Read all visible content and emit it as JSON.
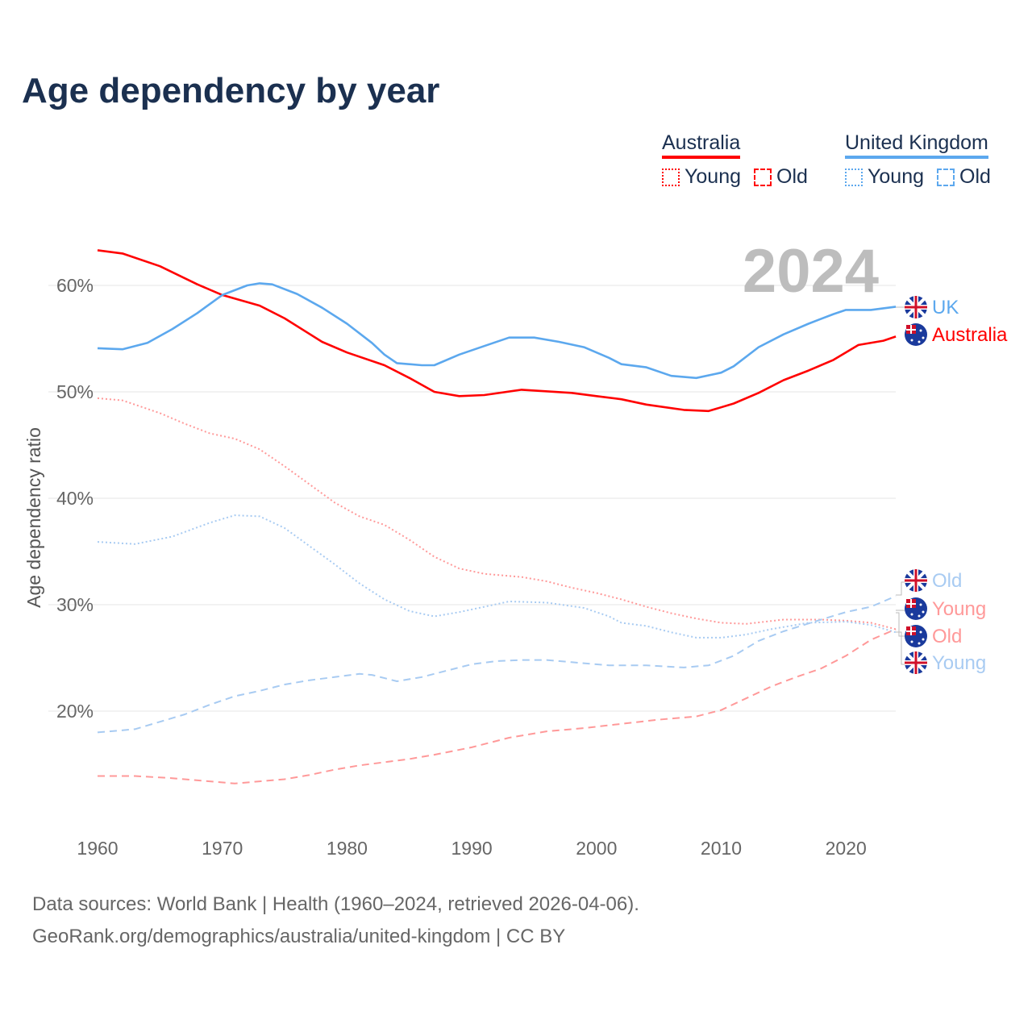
{
  "title": "Age dependency by year",
  "legend": {
    "groups": [
      {
        "name": "Australia",
        "color": "#ff0000",
        "items": [
          "Young",
          "Old"
        ]
      },
      {
        "name": "United Kingdom",
        "color": "#5ca8ee",
        "items": [
          "Young",
          "Old"
        ]
      }
    ]
  },
  "year_label": "2024",
  "footer": {
    "line1": "Data sources: World Bank | Health (1960–2024, retrieved 2026-04-06).",
    "line2": "GeoRank.org/demographics/australia/united-kingdom | CC BY"
  },
  "chart_data": {
    "type": "line",
    "title": "Age dependency by year",
    "xlabel": "",
    "ylabel": "Age dependency ratio",
    "xlim": [
      1960,
      2024
    ],
    "ylim": [
      10,
      65
    ],
    "xticks": [
      "1960",
      "1970",
      "1980",
      "1990",
      "2000",
      "2010",
      "2020"
    ],
    "yticks": [
      "20%",
      "30%",
      "40%",
      "50%",
      "60%"
    ],
    "grid": true,
    "legend_position": "top-right",
    "series": [
      {
        "name": "Australia",
        "label": "Australia",
        "country": "AU",
        "kind": "total",
        "color": "#ff0000",
        "dash": "solid",
        "x": [
          1960,
          1962,
          1965,
          1968,
          1970,
          1973,
          1975,
          1978,
          1980,
          1983,
          1985,
          1987,
          1989,
          1991,
          1994,
          1998,
          2000,
          2002,
          2004,
          2007,
          2009,
          2011,
          2013,
          2015,
          2017,
          2019,
          2021,
          2023,
          2024
        ],
        "y": [
          63.3,
          63.0,
          61.8,
          60.1,
          59.1,
          58.1,
          56.9,
          54.7,
          53.7,
          52.5,
          51.3,
          50.0,
          49.6,
          49.7,
          50.2,
          49.9,
          49.6,
          49.3,
          48.8,
          48.3,
          48.2,
          48.9,
          49.9,
          51.1,
          52.0,
          53.0,
          54.4,
          54.8,
          55.2
        ]
      },
      {
        "name": "United Kingdom",
        "label": "UK",
        "country": "UK",
        "kind": "total",
        "color": "#5ca8ee",
        "dash": "solid",
        "x": [
          1960,
          1962,
          1964,
          1966,
          1968,
          1970,
          1972,
          1973,
          1974,
          1976,
          1978,
          1980,
          1982,
          1983,
          1984,
          1986,
          1987,
          1989,
          1991,
          1993,
          1995,
          1997,
          1999,
          2001,
          2002,
          2004,
          2006,
          2008,
          2010,
          2011,
          2013,
          2015,
          2017,
          2019,
          2020,
          2022,
          2024
        ],
        "y": [
          54.1,
          54.0,
          54.6,
          55.9,
          57.4,
          59.1,
          60.0,
          60.2,
          60.1,
          59.2,
          57.9,
          56.4,
          54.6,
          53.5,
          52.7,
          52.5,
          52.5,
          53.5,
          54.3,
          55.1,
          55.1,
          54.7,
          54.2,
          53.2,
          52.6,
          52.3,
          51.5,
          51.3,
          51.8,
          52.4,
          54.2,
          55.4,
          56.4,
          57.3,
          57.7,
          57.7,
          58.0
        ]
      },
      {
        "name": "Australia Young",
        "label": "Young",
        "country": "AU",
        "kind": "young",
        "color": "#ff9999",
        "dash": "dotted",
        "x": [
          1960,
          1962,
          1965,
          1967,
          1969,
          1971,
          1973,
          1975,
          1977,
          1979,
          1981,
          1983,
          1985,
          1987,
          1989,
          1991,
          1994,
          1996,
          1998,
          2000,
          2002,
          2004,
          2006,
          2008,
          2010,
          2012,
          2015,
          2018,
          2020,
          2022,
          2024
        ],
        "y": [
          49.4,
          49.2,
          48.0,
          47.0,
          46.1,
          45.6,
          44.6,
          43.0,
          41.3,
          39.6,
          38.3,
          37.5,
          36.1,
          34.5,
          33.4,
          32.9,
          32.6,
          32.2,
          31.6,
          31.1,
          30.5,
          29.8,
          29.2,
          28.7,
          28.3,
          28.2,
          28.6,
          28.6,
          28.5,
          28.3,
          27.7
        ]
      },
      {
        "name": "United Kingdom Young",
        "label": "Young",
        "country": "UK",
        "kind": "young",
        "color": "#a8cbf2",
        "dash": "dotted",
        "x": [
          1960,
          1963,
          1966,
          1969,
          1971,
          1973,
          1975,
          1977,
          1979,
          1981,
          1983,
          1985,
          1987,
          1989,
          1991,
          1993,
          1996,
          1999,
          2001,
          2002,
          2004,
          2006,
          2008,
          2010,
          2012,
          2014,
          2017,
          2020,
          2022,
          2024
        ],
        "y": [
          35.9,
          35.7,
          36.4,
          37.7,
          38.4,
          38.3,
          37.2,
          35.5,
          33.8,
          32.0,
          30.5,
          29.4,
          28.9,
          29.3,
          29.8,
          30.3,
          30.2,
          29.7,
          28.9,
          28.3,
          28.0,
          27.4,
          26.9,
          26.9,
          27.2,
          27.7,
          28.3,
          28.4,
          28.1,
          27.4
        ]
      },
      {
        "name": "United Kingdom Old",
        "label": "Old",
        "country": "UK",
        "kind": "old",
        "color": "#a8cbf2",
        "dash": "dashed",
        "x": [
          1960,
          1963,
          1965,
          1967,
          1969,
          1971,
          1973,
          1975,
          1977,
          1979,
          1981,
          1982,
          1984,
          1986,
          1988,
          1990,
          1992,
          1994,
          1996,
          1998,
          2001,
          2004,
          2007,
          2009,
          2011,
          2013,
          2015,
          2018,
          2020,
          2022,
          2024
        ],
        "y": [
          18.0,
          18.3,
          19.0,
          19.7,
          20.6,
          21.4,
          21.9,
          22.5,
          22.9,
          23.2,
          23.5,
          23.4,
          22.8,
          23.2,
          23.8,
          24.4,
          24.7,
          24.8,
          24.8,
          24.6,
          24.3,
          24.3,
          24.1,
          24.3,
          25.2,
          26.6,
          27.5,
          28.6,
          29.3,
          29.8,
          30.8
        ]
      },
      {
        "name": "Australia Old",
        "label": "Old",
        "country": "AU",
        "kind": "old",
        "color": "#ff9999",
        "dash": "dashed",
        "x": [
          1960,
          1963,
          1966,
          1969,
          1971,
          1973,
          1975,
          1977,
          1979,
          1981,
          1983,
          1985,
          1987,
          1990,
          1993,
          1996,
          1999,
          2002,
          2005,
          2008,
          2010,
          2012,
          2014,
          2016,
          2018,
          2020,
          2022,
          2024
        ],
        "y": [
          13.9,
          13.9,
          13.7,
          13.4,
          13.2,
          13.4,
          13.6,
          14.0,
          14.5,
          14.9,
          15.2,
          15.5,
          15.9,
          16.6,
          17.5,
          18.1,
          18.4,
          18.8,
          19.2,
          19.5,
          20.1,
          21.2,
          22.3,
          23.2,
          24.0,
          25.2,
          26.7,
          27.7
        ]
      }
    ],
    "end_labels": [
      {
        "text": "UK",
        "country": "UK",
        "color": "#5ca8ee"
      },
      {
        "text": "Australia",
        "country": "AU",
        "color": "#ff0000"
      },
      {
        "text": "Old",
        "country": "UK",
        "color": "#a8cbf2"
      },
      {
        "text": "Young",
        "country": "AU",
        "color": "#ff9999"
      },
      {
        "text": "Old",
        "country": "AU",
        "color": "#ff9999"
      },
      {
        "text": "Young",
        "country": "UK",
        "color": "#a8cbf2"
      }
    ]
  }
}
